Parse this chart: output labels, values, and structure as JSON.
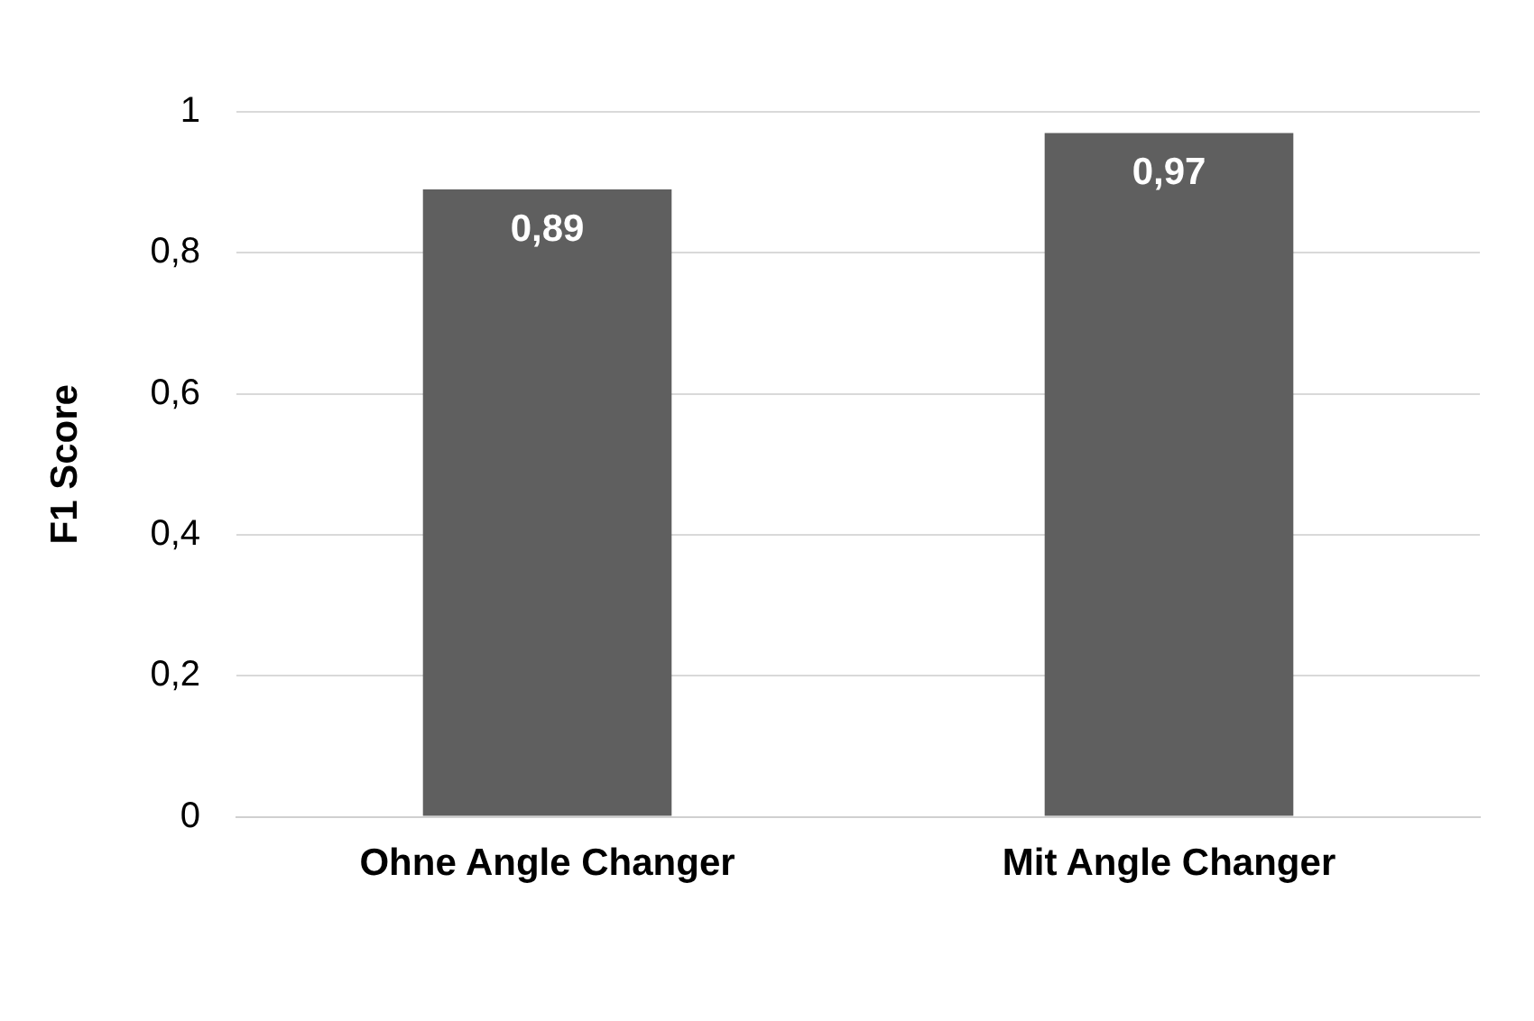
{
  "chart_data": {
    "type": "bar",
    "ylabel": "F1 Score",
    "categories": [
      "Ohne Angle Changer",
      "Mit Angle Changer"
    ],
    "values": [
      0.89,
      0.97
    ],
    "color": "#5f5f5f",
    "value_labels": [
      "0,89",
      "0,97"
    ],
    "ylim": [
      0,
      1
    ],
    "yticks": [
      0,
      {
        "value": 0.2,
        "label": "0,2"
      },
      {
        "value": 0.4,
        "label": "0,4"
      },
      {
        "value": 0.6,
        "label": "0,6"
      },
      {
        "value": 0.8,
        "label": "0,8"
      },
      1
    ],
    "grid": "y",
    "legend": false
  }
}
